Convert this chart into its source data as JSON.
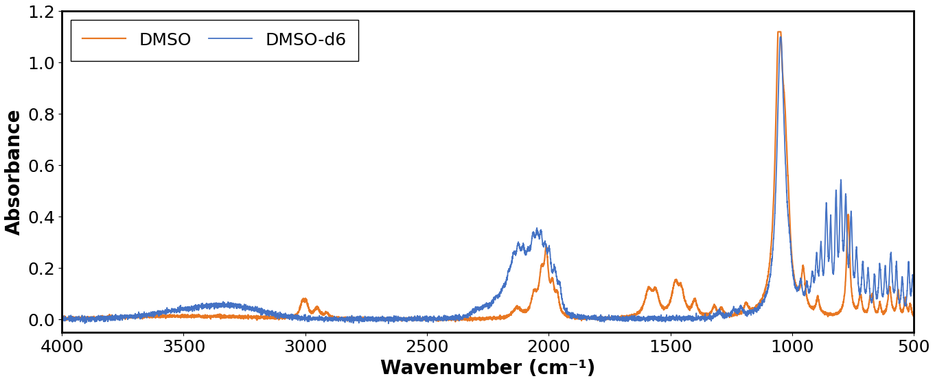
{
  "dmso_color": "#E87722",
  "dmso_d6_color": "#4472C4",
  "xlabel": "Wavenumber (cm⁻¹)",
  "ylabel": "Absorbance",
  "xlim": [
    4000,
    500
  ],
  "ylim": [
    -0.05,
    1.2
  ],
  "yticks": [
    0.0,
    0.2,
    0.4,
    0.6,
    0.8,
    1.0,
    1.2
  ],
  "xticks": [
    4000,
    3500,
    3000,
    2500,
    2000,
    1500,
    1000,
    500
  ],
  "legend_labels": [
    "DMSO",
    "DMSO-d6"
  ],
  "figsize_inches": [
    13.62,
    5.59
  ],
  "dpi": 100,
  "lw_dmso": 1.6,
  "lw_dmso_d6": 1.3,
  "axis_fontsize": 20,
  "tick_fontsize": 18,
  "legend_fontsize": 18
}
